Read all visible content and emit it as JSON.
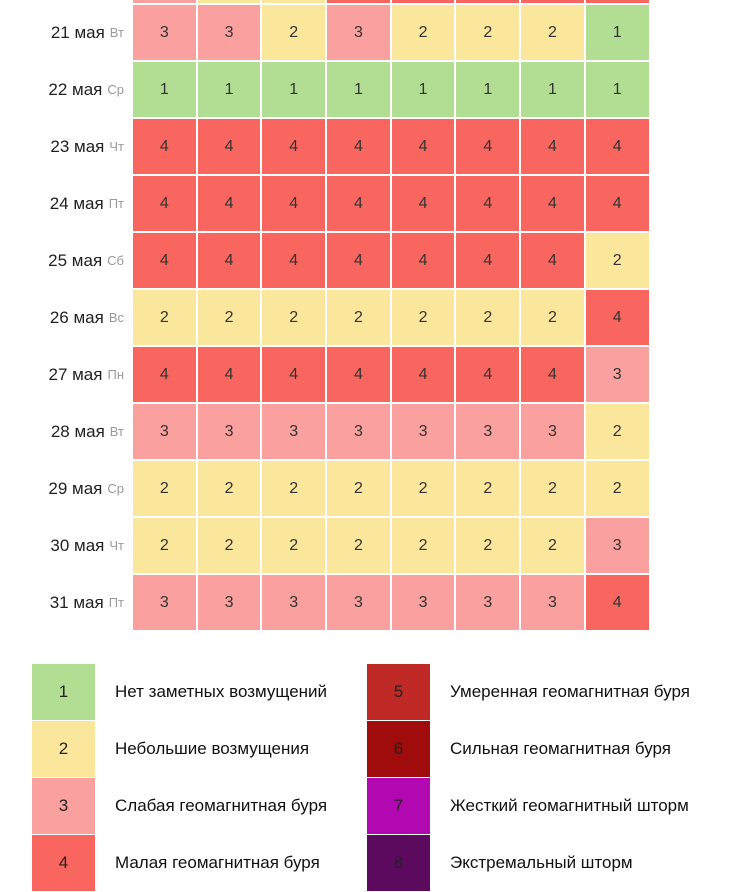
{
  "chart_data": {
    "type": "heatmap",
    "title": "",
    "columns_count": 8,
    "clipped_top_row": {
      "note": "row cut off by viewport top, only cell colors visible",
      "levels": [
        3,
        2,
        2,
        4,
        4,
        4,
        4,
        4
      ]
    },
    "rows": [
      {
        "date": "21 мая",
        "weekday": "Вт",
        "values": [
          3,
          3,
          2,
          3,
          2,
          2,
          2,
          1
        ]
      },
      {
        "date": "22 мая",
        "weekday": "Ср",
        "values": [
          1,
          1,
          1,
          1,
          1,
          1,
          1,
          1
        ]
      },
      {
        "date": "23 мая",
        "weekday": "Чт",
        "values": [
          4,
          4,
          4,
          4,
          4,
          4,
          4,
          4
        ]
      },
      {
        "date": "24 мая",
        "weekday": "Пт",
        "values": [
          4,
          4,
          4,
          4,
          4,
          4,
          4,
          4
        ]
      },
      {
        "date": "25 мая",
        "weekday": "Сб",
        "values": [
          4,
          4,
          4,
          4,
          4,
          4,
          4,
          2
        ]
      },
      {
        "date": "26 мая",
        "weekday": "Вс",
        "values": [
          2,
          2,
          2,
          2,
          2,
          2,
          2,
          4
        ]
      },
      {
        "date": "27 мая",
        "weekday": "Пн",
        "values": [
          4,
          4,
          4,
          4,
          4,
          4,
          4,
          3
        ]
      },
      {
        "date": "28 мая",
        "weekday": "Вт",
        "values": [
          3,
          3,
          3,
          3,
          3,
          3,
          3,
          2
        ]
      },
      {
        "date": "29 мая",
        "weekday": "Ср",
        "values": [
          2,
          2,
          2,
          2,
          2,
          2,
          2,
          2
        ]
      },
      {
        "date": "30 мая",
        "weekday": "Чт",
        "values": [
          2,
          2,
          2,
          2,
          2,
          2,
          2,
          3
        ]
      },
      {
        "date": "31 мая",
        "weekday": "Пт",
        "values": [
          3,
          3,
          3,
          3,
          3,
          3,
          3,
          4
        ]
      }
    ],
    "levels": {
      "1": {
        "color": "#b2de94",
        "label": "Нет заметных возмущений"
      },
      "2": {
        "color": "#fae79c",
        "label": "Небольшие возмущения"
      },
      "3": {
        "color": "#faa09e",
        "label": "Слабая геомагнитная буря"
      },
      "4": {
        "color": "#f9665f",
        "label": "Малая геомагнитная буря"
      },
      "5": {
        "color": "#c02a26",
        "label": "Умеренная геомагнитная буря"
      },
      "6": {
        "color": "#a00b0b",
        "label": "Сильная геомагнитная буря"
      },
      "7": {
        "color": "#b108b1",
        "label": "Жесткий геомагнитный шторм"
      },
      "8": {
        "color": "#5c0a5e",
        "label": "Экстремальный шторм"
      }
    },
    "legend_columns": {
      "left": [
        "1",
        "2",
        "3",
        "4"
      ],
      "right": [
        "5",
        "6",
        "7",
        "8"
      ]
    },
    "legend_position": "bottom"
  }
}
